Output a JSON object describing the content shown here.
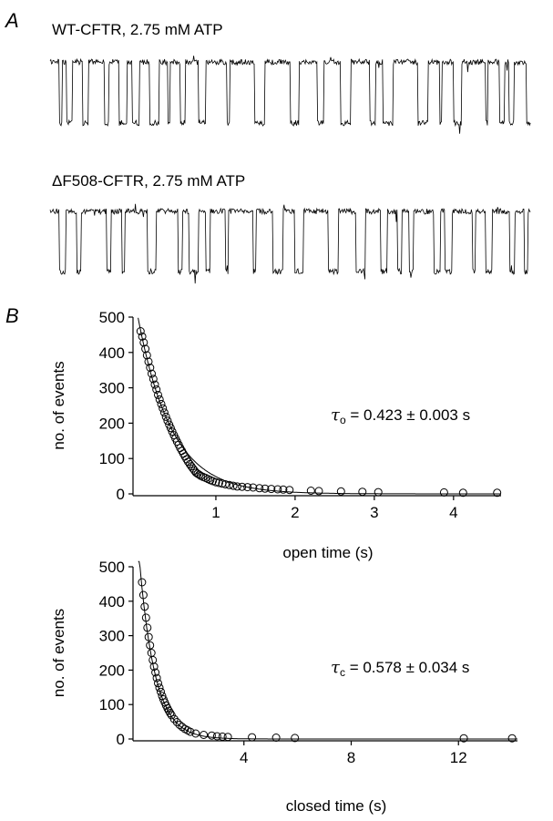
{
  "panel_labels": {
    "a": "A",
    "b": "B"
  },
  "traces": [
    {
      "title": "WT-CFTR, 2.75 mM ATP"
    },
    {
      "title": "ΔF508-CFTR, 2.75 mM ATP"
    }
  ],
  "annotations": [
    {
      "symbol": "τ",
      "subscript": "o",
      "text": " = 0.423 ± 0.003 s"
    },
    {
      "symbol": "τ",
      "subscript": "c",
      "text": " = 0.578 ± 0.034 s"
    }
  ],
  "chart_data": [
    {
      "type": "scatter",
      "xlabel": "open time (s)",
      "ylabel": "no. of events",
      "xlim": [
        0,
        4.6
      ],
      "ylim": [
        0,
        500
      ],
      "xticks": [
        1,
        2,
        3,
        4
      ],
      "yticks": [
        0,
        100,
        200,
        300,
        400,
        500
      ],
      "fit": {
        "type": "exponential",
        "A": 520,
        "tau": 0.423
      },
      "points": {
        "x": [
          0.05,
          0.07,
          0.09,
          0.11,
          0.13,
          0.15,
          0.17,
          0.19,
          0.21,
          0.23,
          0.25,
          0.27,
          0.29,
          0.31,
          0.33,
          0.35,
          0.37,
          0.39,
          0.41,
          0.43,
          0.45,
          0.47,
          0.49,
          0.51,
          0.53,
          0.55,
          0.57,
          0.59,
          0.61,
          0.63,
          0.65,
          0.67,
          0.69,
          0.71,
          0.73,
          0.75,
          0.77,
          0.79,
          0.81,
          0.84,
          0.87,
          0.9,
          0.93,
          0.96,
          1.0,
          1.04,
          1.08,
          1.12,
          1.17,
          1.22,
          1.27,
          1.33,
          1.4,
          1.47,
          1.55,
          1.62,
          1.7,
          1.78,
          1.85,
          1.93,
          2.2,
          2.3,
          2.58,
          2.85,
          3.05,
          3.88,
          4.12,
          4.55
        ],
        "y": [
          460,
          445,
          428,
          410,
          392,
          374,
          357,
          340,
          325,
          309,
          295,
          280,
          267,
          254,
          242,
          230,
          218,
          207,
          196,
          186,
          176,
          166,
          157,
          148,
          139,
          130,
          122,
          114,
          106,
          98,
          91,
          84,
          78,
          72,
          66,
          60,
          57,
          54,
          51,
          48,
          45,
          42,
          39,
          36,
          33,
          31,
          29,
          27,
          25,
          23,
          21,
          20,
          19,
          18,
          16,
          15,
          14,
          13,
          12,
          11,
          9,
          8,
          7,
          6,
          5,
          4,
          3,
          3
        ]
      }
    },
    {
      "type": "scatter",
      "xlabel": "closed time (s)",
      "ylabel": "no. of events",
      "xlim": [
        0,
        14.2
      ],
      "ylim": [
        0,
        500
      ],
      "xticks": [
        4,
        8,
        12
      ],
      "yticks": [
        0,
        100,
        200,
        300,
        400,
        500
      ],
      "fit": {
        "type": "exponential",
        "A": 620,
        "tau": 0.578
      },
      "points": {
        "x": [
          0.2,
          0.25,
          0.3,
          0.35,
          0.4,
          0.45,
          0.5,
          0.55,
          0.6,
          0.65,
          0.7,
          0.75,
          0.8,
          0.85,
          0.9,
          0.95,
          1.0,
          1.05,
          1.1,
          1.15,
          1.2,
          1.25,
          1.3,
          1.4,
          1.5,
          1.6,
          1.7,
          1.8,
          1.9,
          2.0,
          2.2,
          2.5,
          2.8,
          3.0,
          3.2,
          3.4,
          4.3,
          5.2,
          5.9,
          12.2,
          14.0
        ],
        "y": [
          455,
          418,
          384,
          352,
          323,
          296,
          272,
          250,
          229,
          210,
          193,
          177,
          162,
          149,
          137,
          125,
          115,
          106,
          97,
          89,
          82,
          75,
          69,
          58,
          49,
          41,
          35,
          29,
          25,
          21,
          16,
          12,
          10,
          8,
          7,
          6,
          5,
          4,
          3,
          2,
          2
        ]
      }
    }
  ]
}
